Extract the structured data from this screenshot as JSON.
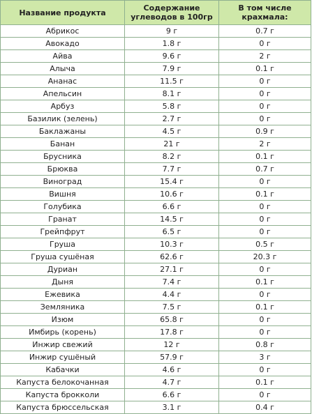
{
  "headers": {
    "product": "Название продукта",
    "carbs": "Содержание углеводов в 100гр",
    "starch": "В том числе крахмала:"
  },
  "rows": [
    {
      "product": "Абрикос",
      "carbs": "9 г",
      "starch": "0.7 г"
    },
    {
      "product": "Авокадо",
      "carbs": "1.8 г",
      "starch": "0 г"
    },
    {
      "product": "Айва",
      "carbs": "9.6 г",
      "starch": "2 г"
    },
    {
      "product": "Алыча",
      "carbs": "7.9 г",
      "starch": "0.1 г"
    },
    {
      "product": "Ананас",
      "carbs": "11.5 г",
      "starch": "0 г"
    },
    {
      "product": "Апельсин",
      "carbs": "8.1 г",
      "starch": "0 г"
    },
    {
      "product": "Арбуз",
      "carbs": "5.8 г",
      "starch": "0 г"
    },
    {
      "product": "Базилик (зелень)",
      "carbs": "2.7 г",
      "starch": "0 г"
    },
    {
      "product": "Баклажаны",
      "carbs": "4.5 г",
      "starch": "0.9 г"
    },
    {
      "product": "Банан",
      "carbs": "21 г",
      "starch": "2 г"
    },
    {
      "product": "Брусника",
      "carbs": "8.2 г",
      "starch": "0.1 г"
    },
    {
      "product": "Брюква",
      "carbs": "7.7 г",
      "starch": "0.7 г"
    },
    {
      "product": "Виноград",
      "carbs": "15.4 г",
      "starch": "0 г"
    },
    {
      "product": "Вишня",
      "carbs": "10.6 г",
      "starch": "0.1 г"
    },
    {
      "product": "Голубика",
      "carbs": "6.6 г",
      "starch": "0 г"
    },
    {
      "product": "Гранат",
      "carbs": "14.5 г",
      "starch": "0 г"
    },
    {
      "product": "Грейпфрут",
      "carbs": "6.5 г",
      "starch": "0 г"
    },
    {
      "product": "Груша",
      "carbs": "10.3 г",
      "starch": "0.5 г"
    },
    {
      "product": "Груша сушёная",
      "carbs": "62.6 г",
      "starch": "20.3 г"
    },
    {
      "product": "Дуриан",
      "carbs": "27.1 г",
      "starch": "0 г"
    },
    {
      "product": "Дыня",
      "carbs": "7.4 г",
      "starch": "0.1 г"
    },
    {
      "product": "Ежевика",
      "carbs": "4.4 г",
      "starch": "0 г"
    },
    {
      "product": "Земляника",
      "carbs": "7.5 г",
      "starch": "0.1 г"
    },
    {
      "product": "Изюм",
      "carbs": "65.8 г",
      "starch": "0 г"
    },
    {
      "product": "Имбирь (корень)",
      "carbs": "17.8 г",
      "starch": "0 г"
    },
    {
      "product": "Инжир свежий",
      "carbs": "12 г",
      "starch": "0.8 г"
    },
    {
      "product": "Инжир сушёный",
      "carbs": "57.9 г",
      "starch": "3 г"
    },
    {
      "product": "Кабачки",
      "carbs": "4.6 г",
      "starch": "0 г"
    },
    {
      "product": "Капуста белокочанная",
      "carbs": "4.7 г",
      "starch": "0.1 г"
    },
    {
      "product": "Капуста брокколи",
      "carbs": "6.6 г",
      "starch": "0 г"
    },
    {
      "product": "Капуста брюссельская",
      "carbs": "3.1 г",
      "starch": "0.4 г"
    }
  ]
}
